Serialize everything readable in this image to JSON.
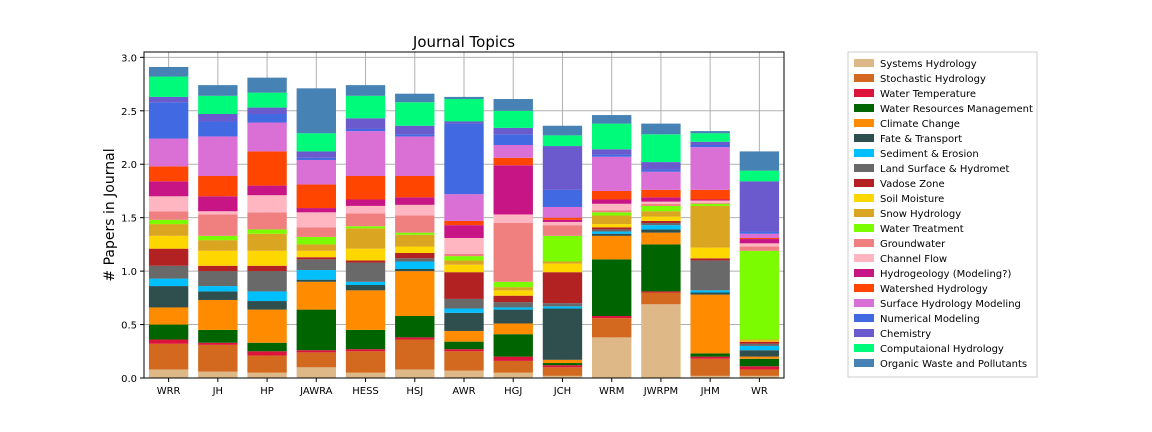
{
  "chart_data": {
    "type": "bar",
    "stacked": true,
    "title": "Journal Topics",
    "xlabel": "",
    "ylabel": "# Papers in Journal",
    "ylim": [
      0,
      3.05
    ],
    "yticks": [
      "0.0",
      "0.5",
      "1.0",
      "1.5",
      "2.0",
      "2.5",
      "3.0"
    ],
    "grid": true,
    "legend_position": "outside-right",
    "categories": [
      "WRR",
      "JH",
      "HP",
      "JAWRA",
      "HESS",
      "HSJ",
      "AWR",
      "HGJ",
      "JCH",
      "WRM",
      "JWRPM",
      "JHM",
      "WR"
    ],
    "series": [
      {
        "name": "Systems Hydrology",
        "color": "#deb887",
        "values": [
          0.08,
          0.06,
          0.05,
          0.1,
          0.05,
          0.08,
          0.07,
          0.05,
          0.02,
          0.38,
          0.69,
          0.02,
          0.02
        ]
      },
      {
        "name": "Stochastic Hydrology",
        "color": "#d2691e",
        "values": [
          0.24,
          0.25,
          0.16,
          0.14,
          0.2,
          0.28,
          0.18,
          0.11,
          0.08,
          0.18,
          0.11,
          0.16,
          0.06
        ]
      },
      {
        "name": "Water Temperature",
        "color": "#dc143c",
        "values": [
          0.04,
          0.02,
          0.04,
          0.02,
          0.02,
          0.02,
          0.02,
          0.04,
          0.02,
          0.02,
          0.01,
          0.02,
          0.03
        ]
      },
      {
        "name": "Water Resources Management",
        "color": "#006400",
        "values": [
          0.14,
          0.12,
          0.08,
          0.38,
          0.18,
          0.2,
          0.07,
          0.21,
          0.02,
          0.53,
          0.44,
          0.03,
          0.07
        ]
      },
      {
        "name": "Climate Change",
        "color": "#ff8c00",
        "values": [
          0.16,
          0.28,
          0.31,
          0.26,
          0.37,
          0.42,
          0.1,
          0.1,
          0.03,
          0.22,
          0.11,
          0.55,
          0.02
        ]
      },
      {
        "name": "Fate & Transport",
        "color": "#2f4f4f",
        "values": [
          0.2,
          0.08,
          0.08,
          0.02,
          0.05,
          0.02,
          0.17,
          0.13,
          0.48,
          0.02,
          0.03,
          0.02,
          0.06
        ]
      },
      {
        "name": "Sediment & Erosion",
        "color": "#00bfff",
        "values": [
          0.07,
          0.05,
          0.09,
          0.09,
          0.03,
          0.07,
          0.04,
          0.02,
          0.02,
          0.02,
          0.04,
          0.02,
          0.04
        ]
      },
      {
        "name": "Land Surface & Hydromet",
        "color": "#696969",
        "values": [
          0.12,
          0.14,
          0.19,
          0.1,
          0.18,
          0.03,
          0.09,
          0.05,
          0.03,
          0.02,
          0.02,
          0.28,
          0.02
        ]
      },
      {
        "name": "Vadose Zone",
        "color": "#b22222",
        "values": [
          0.16,
          0.05,
          0.05,
          0.02,
          0.02,
          0.05,
          0.25,
          0.06,
          0.29,
          0.02,
          0.02,
          0.02,
          0.02
        ]
      },
      {
        "name": "Soil Moisture",
        "color": "#ffd700",
        "values": [
          0.12,
          0.14,
          0.14,
          0.06,
          0.11,
          0.06,
          0.07,
          0.05,
          0.08,
          0.03,
          0.04,
          0.1,
          0.01
        ]
      },
      {
        "name": "Snow Hydrology",
        "color": "#daa520",
        "values": [
          0.11,
          0.1,
          0.16,
          0.06,
          0.19,
          0.11,
          0.04,
          0.03,
          0.02,
          0.08,
          0.05,
          0.39,
          0.01
        ]
      },
      {
        "name": "Water Treatment",
        "color": "#7cfc00",
        "values": [
          0.04,
          0.04,
          0.04,
          0.07,
          0.02,
          0.02,
          0.04,
          0.05,
          0.24,
          0.03,
          0.05,
          0.02,
          0.83
        ]
      },
      {
        "name": "Groundwater",
        "color": "#f08080",
        "values": [
          0.08,
          0.2,
          0.16,
          0.09,
          0.12,
          0.16,
          0.02,
          0.55,
          0.1,
          0.02,
          0.02,
          0.01,
          0.04
        ]
      },
      {
        "name": "Channel Flow",
        "color": "#ffb6c1",
        "values": [
          0.14,
          0.03,
          0.16,
          0.14,
          0.07,
          0.1,
          0.15,
          0.08,
          0.03,
          0.06,
          0.02,
          0.02,
          0.03
        ]
      },
      {
        "name": "Hydrogeology (Modeling?)",
        "color": "#c71585",
        "values": [
          0.14,
          0.14,
          0.09,
          0.04,
          0.06,
          0.07,
          0.12,
          0.46,
          0.02,
          0.04,
          0.04,
          0.01,
          0.04
        ]
      },
      {
        "name": "Watershed Hydrology",
        "color": "#ff4500",
        "values": [
          0.14,
          0.19,
          0.32,
          0.22,
          0.22,
          0.2,
          0.04,
          0.07,
          0.02,
          0.08,
          0.07,
          0.09,
          0.01
        ]
      },
      {
        "name": "Surface Hydrology Modeling",
        "color": "#da70d6",
        "values": [
          0.26,
          0.37,
          0.27,
          0.23,
          0.42,
          0.37,
          0.25,
          0.12,
          0.1,
          0.32,
          0.17,
          0.4,
          0.04
        ]
      },
      {
        "name": "Numerical Modeling",
        "color": "#4169e1",
        "values": [
          0.34,
          0.14,
          0.08,
          0.02,
          0.02,
          0.02,
          0.66,
          0.1,
          0.16,
          0.02,
          0.02,
          0.02,
          0.02
        ]
      },
      {
        "name": "Chemistry",
        "color": "#6a5acd",
        "values": [
          0.05,
          0.07,
          0.06,
          0.06,
          0.1,
          0.08,
          0.02,
          0.06,
          0.41,
          0.05,
          0.07,
          0.03,
          0.47
        ]
      },
      {
        "name": "Computaional Hydrology",
        "color": "#00fa7a",
        "values": [
          0.19,
          0.17,
          0.14,
          0.17,
          0.21,
          0.22,
          0.21,
          0.16,
          0.1,
          0.24,
          0.26,
          0.08,
          0.1
        ]
      },
      {
        "name": "Organic Waste and Pollutants",
        "color": "#4682b4",
        "values": [
          0.09,
          0.1,
          0.14,
          0.42,
          0.1,
          0.08,
          0.02,
          0.11,
          0.09,
          0.08,
          0.1,
          0.02,
          0.18
        ]
      }
    ]
  }
}
